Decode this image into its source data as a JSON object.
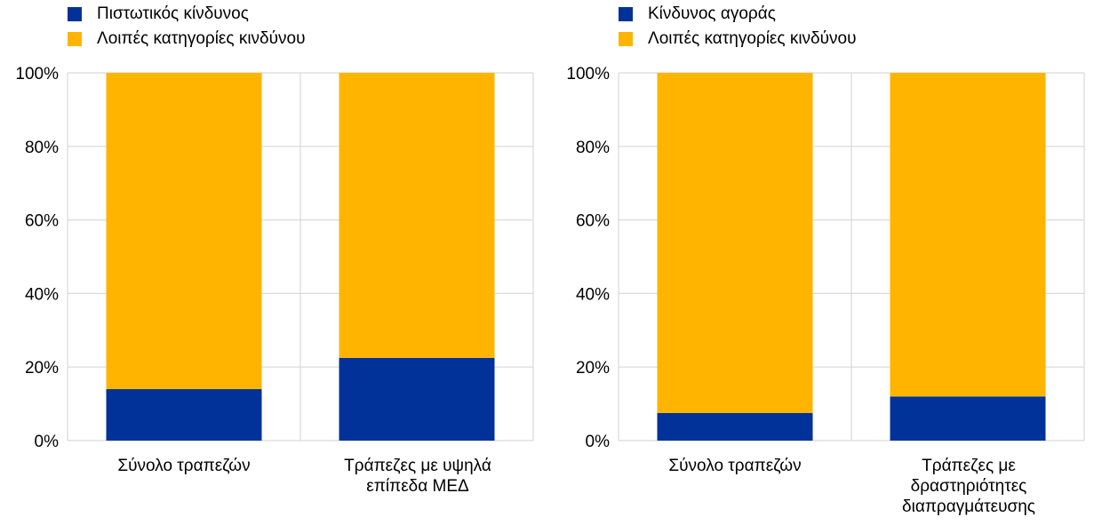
{
  "colors": {
    "primary": "#003299",
    "other": "#FFB400",
    "grid": "#d9d9d9",
    "axis": "#c8c8c8"
  },
  "chart_data": [
    {
      "type": "bar",
      "stacked": true,
      "categories": [
        "Σύνολο τραπεζών",
        "Τράπεζες με υψηλά επίπεδα ΜΕΔ"
      ],
      "series": [
        {
          "name": "Πιστωτικός κίνδυνος",
          "color": "#003299",
          "values": [
            14,
            22.5
          ]
        },
        {
          "name": "Λοιπές κατηγορίες κινδύνου",
          "color": "#FFB400",
          "values": [
            86,
            77.5
          ]
        }
      ],
      "yticks": [
        "0%",
        "20%",
        "40%",
        "60%",
        "80%",
        "100%"
      ],
      "ylim": [
        0,
        100
      ],
      "grid": true,
      "legend": "top-left"
    },
    {
      "type": "bar",
      "stacked": true,
      "categories": [
        "Σύνολο τραπεζών",
        "Τράπεζες με δραστηριότητες διαπραγμάτευσης"
      ],
      "series": [
        {
          "name": "Κίνδυνος αγοράς",
          "color": "#003299",
          "values": [
            7.5,
            12
          ]
        },
        {
          "name": "Λοιπές κατηγορίες κινδύνου",
          "color": "#FFB400",
          "values": [
            92.5,
            88
          ]
        }
      ],
      "yticks": [
        "0%",
        "20%",
        "40%",
        "60%",
        "80%",
        "100%"
      ],
      "ylim": [
        0,
        100
      ],
      "grid": true,
      "legend": "top-left"
    }
  ]
}
